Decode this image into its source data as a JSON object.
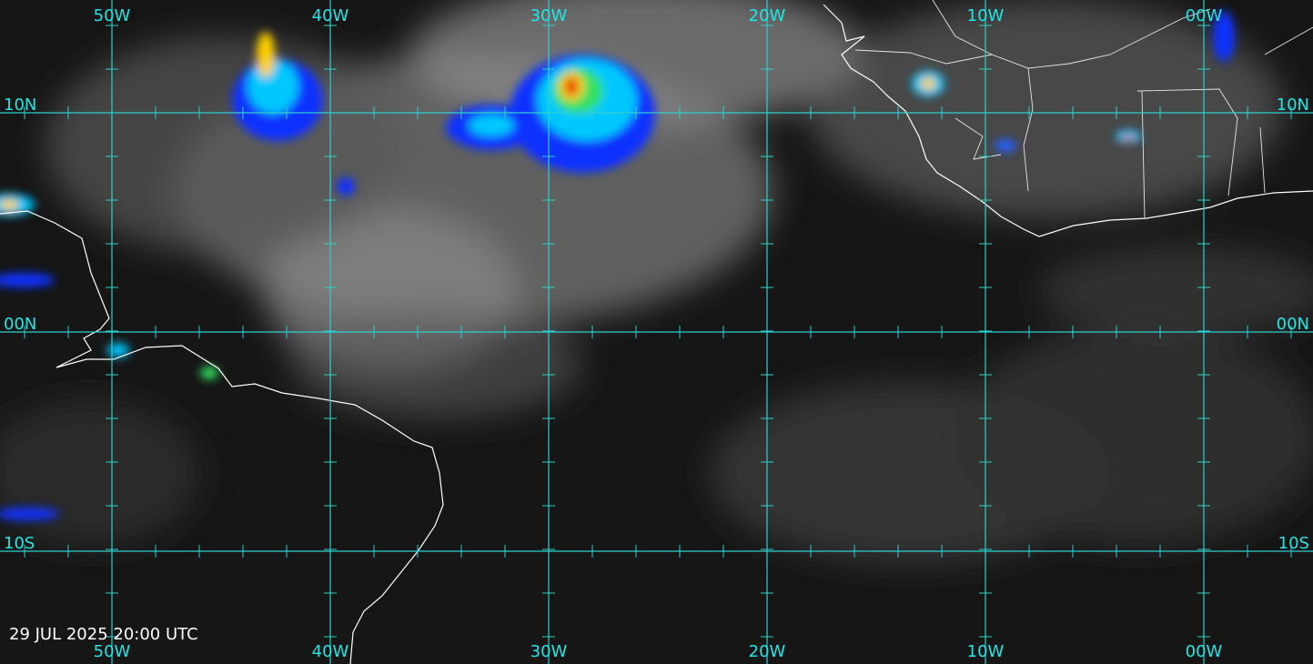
{
  "map": {
    "longitude_labels": [
      "50W",
      "40W",
      "30W",
      "20W",
      "10W",
      "00W"
    ],
    "latitude_labels": [
      "10N",
      "00N",
      "10S"
    ],
    "timestamp": "29 JUL 2025 20:00 UTC"
  }
}
